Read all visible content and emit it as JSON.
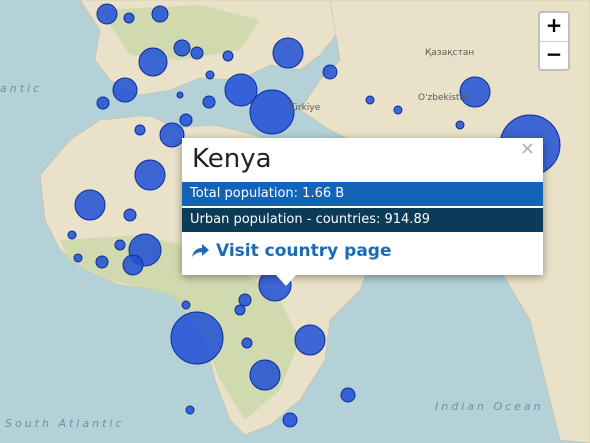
{
  "popup": {
    "title": "Kenya",
    "close": "×",
    "rows": [
      "Total population: 1.66 B",
      "Urban population - countries: 914.89"
    ],
    "link": "Visit country page"
  },
  "zoom": {
    "in": "+",
    "out": "−"
  },
  "labels": {
    "kazakhstan": "Қазақстан",
    "uzbekistan": "O'zbekiston",
    "turkiye": "Türkiye",
    "indian_ocean": "Indian Ocean",
    "south_atlantic": "South Atlantic",
    "atlantic": "antic"
  }
}
